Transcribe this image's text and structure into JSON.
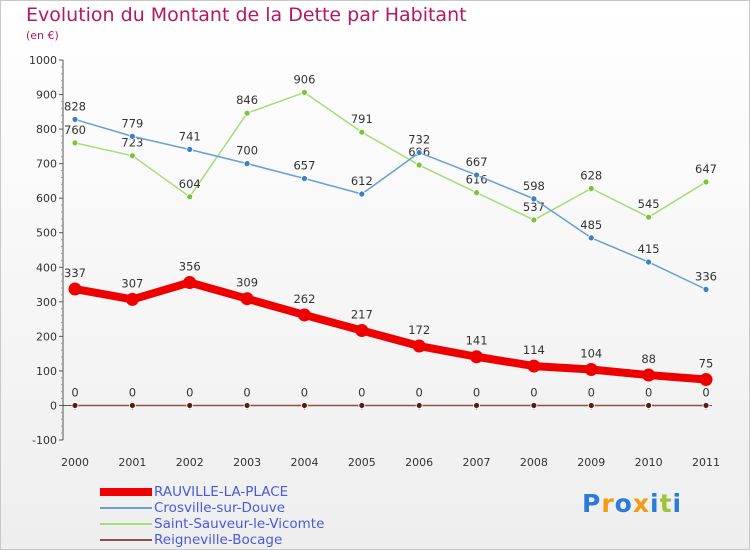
{
  "chart_data": {
    "type": "line",
    "title": "Evolution du Montant de la Dette par Habitant",
    "unit_label": "(en €)",
    "xlabel": "",
    "ylabel": "",
    "ylim": [
      -100,
      1000
    ],
    "yticks": [
      -100,
      0,
      100,
      200,
      300,
      400,
      500,
      600,
      700,
      800,
      900,
      1000
    ],
    "grid": false,
    "legend_position": "bottom-left",
    "categories": [
      "2000",
      "2001",
      "2002",
      "2003",
      "2004",
      "2005",
      "2006",
      "2007",
      "2008",
      "2009",
      "2010",
      "2011"
    ],
    "series": [
      {
        "name": "RAUVILLE-LA-PLACE",
        "color": "#ee0000",
        "values": [
          337,
          307,
          356,
          309,
          262,
          217,
          172,
          141,
          114,
          104,
          88,
          75
        ]
      },
      {
        "name": "Crosville-sur-Douve",
        "color": "#6a9fd0",
        "values": [
          828,
          779,
          741,
          700,
          657,
          612,
          732,
          667,
          598,
          485,
          415,
          336
        ]
      },
      {
        "name": "Saint-Sauveur-le-Vicomte",
        "color": "#a6dc7a",
        "values": [
          760,
          723,
          604,
          846,
          906,
          791,
          696,
          616,
          537,
          628,
          545,
          647
        ]
      },
      {
        "name": "Reigneville-Bocage",
        "color": "#8a5050",
        "values": [
          0,
          0,
          0,
          0,
          0,
          0,
          0,
          0,
          0,
          0,
          0,
          0
        ]
      }
    ]
  },
  "logo": {
    "letters": [
      "P",
      "r",
      "o",
      "x",
      "i",
      "t",
      "i"
    ],
    "colors": [
      "#2b7bd8",
      "#f39c12",
      "#2b7bd8",
      "#f39c12",
      "#2b7bd8",
      "#9dc33b",
      "#2b7bd8"
    ]
  }
}
